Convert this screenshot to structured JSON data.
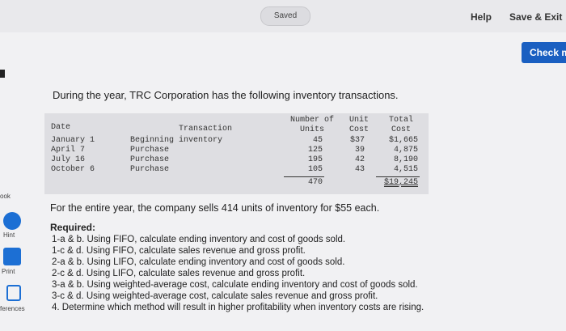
{
  "topbar": {
    "status": "Saved",
    "help": "Help",
    "save_exit": "Save & Exit",
    "check": "Check m"
  },
  "sidebar": [
    "ook",
    "Hint",
    "Print",
    "ferences"
  ],
  "intro": "During the year, TRC Corporation has the following inventory transactions.",
  "table": {
    "header": [
      "Date",
      "Transaction",
      "Number of Units",
      "Unit Cost",
      "Total Cost"
    ],
    "rows": [
      [
        "January 1",
        "Beginning inventory",
        "45",
        "$37",
        "$1,665"
      ],
      [
        "April 7",
        "Purchase",
        "125",
        "39",
        "4,875"
      ],
      [
        "July 16",
        "Purchase",
        "195",
        "42",
        "8,190"
      ],
      [
        "October 6",
        "Purchase",
        "105",
        "43",
        "4,515"
      ]
    ],
    "totals": [
      "470",
      "$19,245"
    ]
  },
  "sales_note": "For the entire year, the company sells 414 units of inventory for $55 each.",
  "required": {
    "heading": "Required:",
    "items": [
      "1-a & b. Using FIFO, calculate ending inventory and cost of goods sold.",
      "1-c & d. Using FIFO, calculate sales revenue and gross profit.",
      "2-a & b. Using LIFO, calculate ending inventory and cost of goods sold.",
      "2-c & d. Using LIFO, calculate sales revenue and gross profit.",
      "3-a & b. Using weighted-average cost, calculate ending inventory and cost of goods sold.",
      "3-c & d. Using weighted-average cost, calculate sales revenue and gross profit.",
      "4. Determine which method will result in higher profitability when inventory costs are rising."
    ]
  }
}
